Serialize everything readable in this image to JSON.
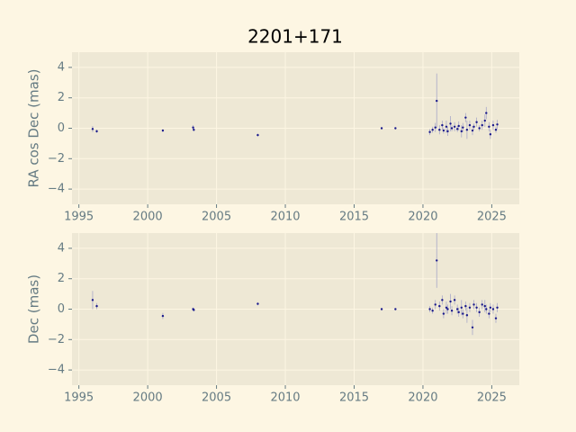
{
  "chart_data": [
    {
      "type": "scatter",
      "title": "2201+171",
      "ylabel": "RA cos Dec (mas)",
      "xlim": [
        1994.5,
        2027
      ],
      "ylim": [
        -5,
        5
      ],
      "xticks": [
        1995,
        2000,
        2005,
        2010,
        2015,
        2020,
        2025
      ],
      "yticks": [
        {
          "value": -4,
          "label": "−4"
        },
        {
          "value": -2,
          "label": "−2"
        },
        0,
        2,
        4
      ],
      "grid": true,
      "color": "#1a1a8c",
      "error_color": "#a8a8c8",
      "x": [
        1996.0,
        1996.3,
        2001.1,
        2003.3,
        2003.35,
        2008.0,
        2017.0,
        2018.0,
        2020.5,
        2020.7,
        2020.9,
        2021.0,
        2021.2,
        2021.4,
        2021.5,
        2021.7,
        2021.8,
        2022.0,
        2022.1,
        2022.3,
        2022.5,
        2022.6,
        2022.8,
        2022.9,
        2023.1,
        2023.2,
        2023.4,
        2023.6,
        2023.7,
        2023.9,
        2024.1,
        2024.3,
        2024.5,
        2024.6,
        2024.8,
        2024.9,
        2025.1,
        2025.3,
        2025.4
      ],
      "values": [
        -0.05,
        -0.2,
        -0.15,
        0.05,
        -0.1,
        -0.45,
        0.0,
        0.0,
        -0.25,
        -0.1,
        0.05,
        1.8,
        -0.1,
        0.2,
        -0.15,
        0.1,
        -0.2,
        0.3,
        0.0,
        0.1,
        -0.05,
        0.15,
        -0.2,
        0.05,
        0.7,
        -0.1,
        0.2,
        -0.15,
        0.1,
        0.4,
        0.0,
        0.2,
        0.5,
        1.0,
        0.1,
        -0.4,
        0.2,
        -0.1,
        0.25
      ],
      "errors": [
        0.2,
        0.1,
        0.1,
        0.15,
        0.1,
        0.1,
        0.05,
        0.05,
        0.2,
        0.2,
        0.3,
        1.8,
        0.3,
        0.3,
        0.2,
        0.4,
        0.3,
        0.5,
        0.2,
        0.3,
        0.2,
        0.3,
        0.4,
        0.3,
        0.3,
        0.6,
        0.3,
        0.3,
        0.2,
        0.3,
        0.2,
        0.3,
        0.4,
        0.4,
        0.3,
        0.3,
        0.3,
        0.2,
        0.3
      ]
    },
    {
      "type": "scatter",
      "ylabel": "Dec (mas)",
      "xlim": [
        1994.5,
        2027
      ],
      "ylim": [
        -5,
        5
      ],
      "xticks": [
        1995,
        2000,
        2005,
        2010,
        2015,
        2020,
        2025
      ],
      "yticks": [
        {
          "value": -4,
          "label": "−4"
        },
        {
          "value": -2,
          "label": "−2"
        },
        0,
        2,
        4
      ],
      "grid": true,
      "color": "#1a1a8c",
      "error_color": "#a8a8c8",
      "x": [
        1996.0,
        1996.3,
        2001.1,
        2003.3,
        2003.35,
        2008.0,
        2017.0,
        2018.0,
        2020.5,
        2020.7,
        2020.9,
        2021.0,
        2021.2,
        2021.4,
        2021.5,
        2021.7,
        2021.8,
        2022.0,
        2022.1,
        2022.3,
        2022.5,
        2022.6,
        2022.8,
        2022.9,
        2023.1,
        2023.2,
        2023.4,
        2023.6,
        2023.7,
        2023.9,
        2024.1,
        2024.3,
        2024.5,
        2024.6,
        2024.8,
        2024.9,
        2025.1,
        2025.3,
        2025.4
      ],
      "values": [
        0.6,
        0.2,
        -0.45,
        0.0,
        -0.05,
        0.35,
        0.0,
        0.0,
        0.0,
        -0.1,
        0.3,
        3.2,
        0.2,
        0.6,
        -0.3,
        0.1,
        0.0,
        0.5,
        -0.1,
        0.6,
        0.0,
        -0.2,
        0.1,
        -0.3,
        0.2,
        -0.4,
        0.1,
        -1.2,
        0.3,
        0.1,
        -0.2,
        0.3,
        0.2,
        0.0,
        -0.3,
        0.1,
        0.0,
        -0.6,
        0.1
      ],
      "errors": [
        0.6,
        0.2,
        0.2,
        0.1,
        0.1,
        0.1,
        0.05,
        0.05,
        0.2,
        0.2,
        0.3,
        1.8,
        0.3,
        0.3,
        0.3,
        0.4,
        0.3,
        0.5,
        0.3,
        0.3,
        0.3,
        0.3,
        0.5,
        0.3,
        0.3,
        0.5,
        0.3,
        0.5,
        0.3,
        0.3,
        0.3,
        0.3,
        0.4,
        0.3,
        0.3,
        0.3,
        0.3,
        0.3,
        0.3
      ]
    }
  ]
}
